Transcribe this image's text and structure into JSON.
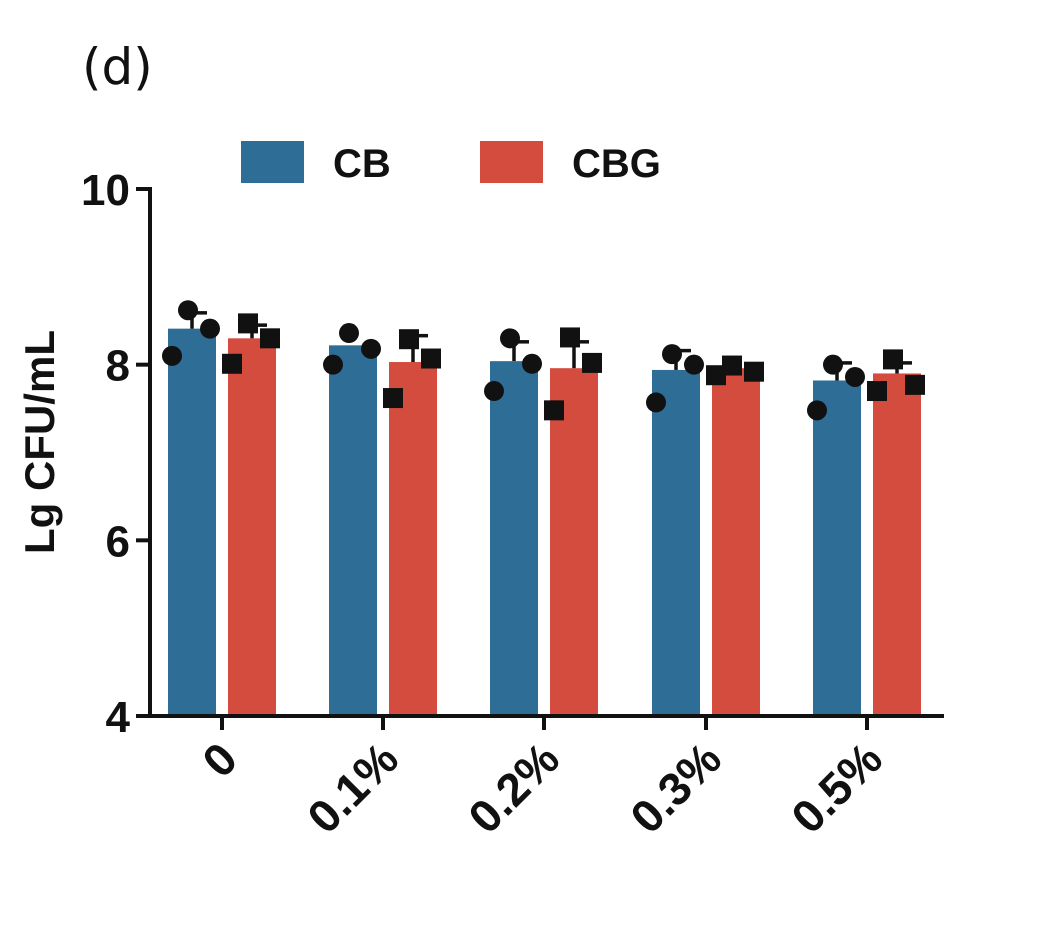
{
  "panel_label": "(d)",
  "chart_data": {
    "type": "bar",
    "title": "",
    "xlabel": "",
    "ylabel": "Lg CFU/mL",
    "ylim": [
      4,
      10
    ],
    "yticks": [
      "4",
      "6",
      "8",
      "10"
    ],
    "categories": [
      "0",
      "0.1%",
      "0.2%",
      "0.3%",
      "0.5%"
    ],
    "legend_position": "top",
    "grid": false,
    "series": [
      {
        "name": "CB",
        "color": "#2e6e96",
        "marker": "circle",
        "values": [
          8.41,
          8.22,
          8.04,
          7.94,
          7.82
        ],
        "errors": [
          0.18,
          0.0,
          0.22,
          0.22,
          0.2
        ],
        "points": [
          [
            8.62,
            8.1,
            8.41
          ],
          [
            8.36,
            8.0,
            8.18
          ],
          [
            8.3,
            7.7,
            8.01
          ],
          [
            8.12,
            7.57,
            8.0
          ],
          [
            8.0,
            7.48,
            7.86
          ]
        ]
      },
      {
        "name": "CBG",
        "color": "#d44c3e",
        "marker": "square",
        "values": [
          8.3,
          8.03,
          7.96,
          7.96,
          7.9
        ],
        "errors": [
          0.15,
          0.3,
          0.3,
          0.0,
          0.12
        ],
        "points": [
          [
            8.47,
            8.01,
            8.3
          ],
          [
            8.29,
            7.62,
            8.07
          ],
          [
            8.31,
            7.48,
            8.02
          ],
          [
            7.99,
            7.88,
            7.92
          ],
          [
            8.06,
            7.7,
            7.77
          ]
        ]
      }
    ]
  }
}
